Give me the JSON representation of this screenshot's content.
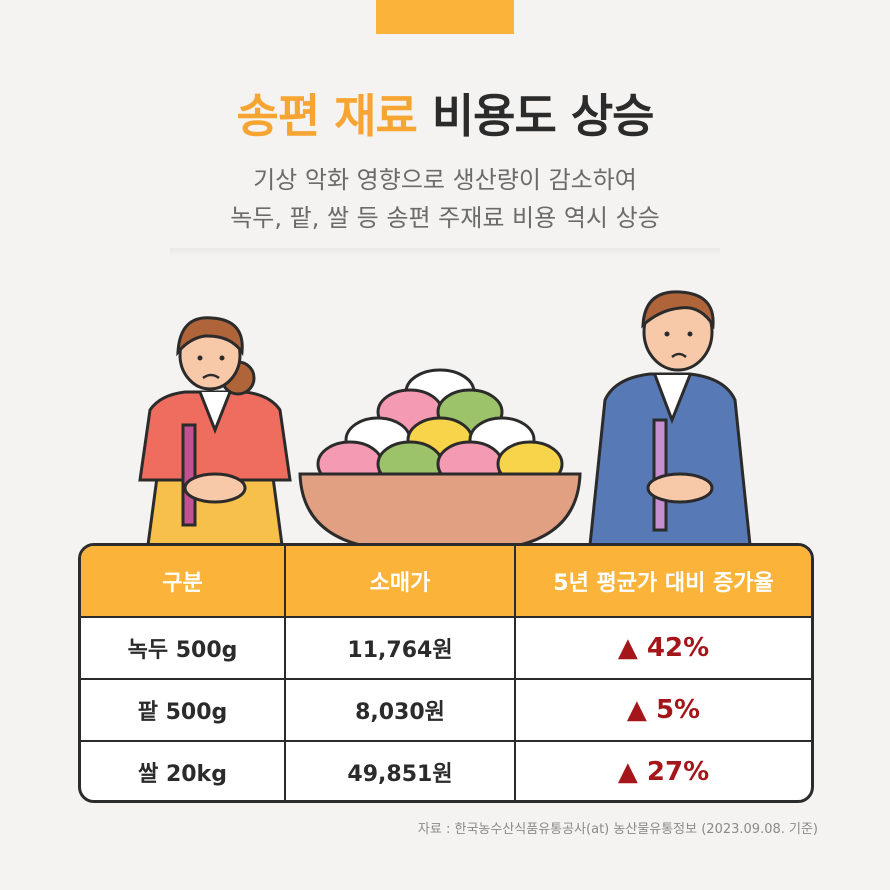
{
  "title": {
    "highlight": "송편 재료",
    "rest": "비용도 상승"
  },
  "subtitle": {
    "line1": "기상 악화 영향으로 생산량이 감소하여",
    "line2": "녹두, 팥, 쌀 등 송편 주재료 비용 역시 상승"
  },
  "table": {
    "headers": [
      "구분",
      "소매가",
      "5년 평균가 대비 증가율"
    ],
    "rows": [
      {
        "item": "녹두 500g",
        "price": "11,764원",
        "increase": "▲ 42%"
      },
      {
        "item": "팥 500g",
        "price": "8,030원",
        "increase": "▲ 5%"
      },
      {
        "item": "쌀 20kg",
        "price": "49,851원",
        "increase": "▲ 27%"
      }
    ]
  },
  "source": "자료 : 한국농수산식품유통공사(at) 농산물유통정보 (2023.09.08. 기준)",
  "colors": {
    "accent": "#fbb33a",
    "highlight_text": "#f7a532",
    "increase": "#a4161a",
    "ink": "#2b2b2b"
  }
}
